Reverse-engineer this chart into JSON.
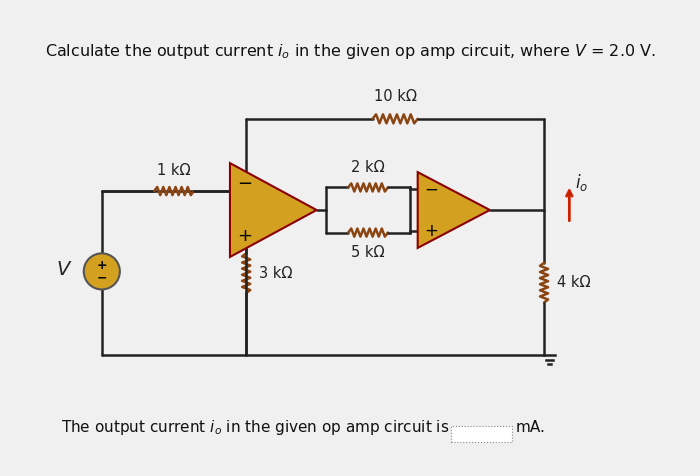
{
  "title": "Calculate the output current $i_o$ in the given op amp circuit, where $V$ = 2.0 V.",
  "bottom_text": "The output current $i_o$ in the given op amp circuit is",
  "bottom_unit": "mA.",
  "bg_color": "#f0f0f0",
  "wire_color": "#222222",
  "opamp_fill": "#d4a020",
  "opamp_edge": "#8B0000",
  "resistor_color": "#8B4513",
  "source_color": "#d4a020",
  "arrow_color": "#cc2200",
  "labels": {
    "R1": "1 kΩ",
    "R2": "2 kΩ",
    "R3": "3 kΩ",
    "R4": "4 kΩ",
    "R5": "5 kΩ",
    "R6": "10 kΩ",
    "io": "$i_o$",
    "V": "V"
  }
}
